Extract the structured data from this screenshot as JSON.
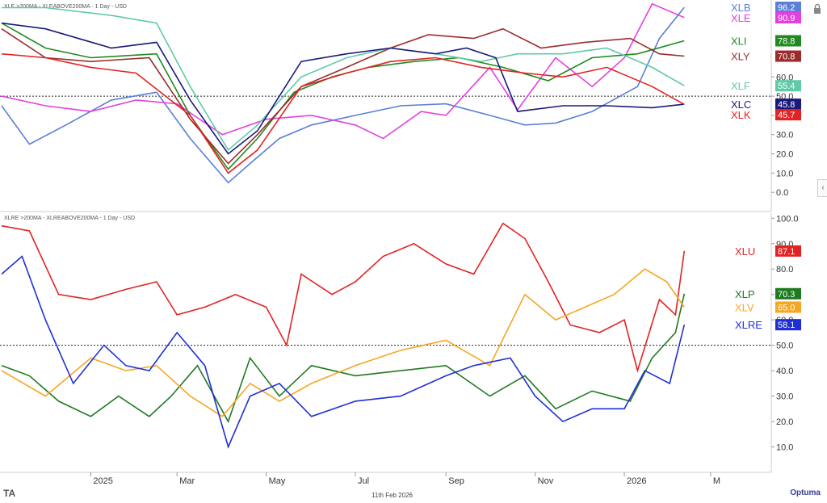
{
  "footer": {
    "date": "11th Feb 2026",
    "brand": "Optuma",
    "logo": "TA"
  },
  "icons": {
    "lock": "lock-icon",
    "collapse": "chevron-left-icon"
  },
  "chart_data": [
    {
      "type": "line",
      "title": "XLE >200MA - XLEABOVE200MA - 1 Day - USD",
      "x_start": "2024-11-01",
      "x_end": "2026-02-11",
      "ylim": [
        -10,
        100
      ],
      "yticks": [
        0.0,
        10.0,
        20.0,
        30.0,
        40.0,
        50.0,
        60.0
      ],
      "reference_line": 50,
      "series": [
        {
          "name": "XLB",
          "color": "#5b7fd6",
          "last": "96.2",
          "points": [
            [
              "2024-11-01",
              45
            ],
            [
              "2024-11-20",
              25
            ],
            [
              "2024-12-15",
              35
            ],
            [
              "2025-01-15",
              48
            ],
            [
              "2025-02-15",
              52
            ],
            [
              "2025-03-10",
              28
            ],
            [
              "2025-04-05",
              5
            ],
            [
              "2025-04-20",
              15
            ],
            [
              "2025-05-10",
              28
            ],
            [
              "2025-06-01",
              35
            ],
            [
              "2025-07-01",
              40
            ],
            [
              "2025-08-01",
              45
            ],
            [
              "2025-09-01",
              46
            ],
            [
              "2025-10-01",
              40
            ],
            [
              "2025-10-25",
              35
            ],
            [
              "2025-11-15",
              36
            ],
            [
              "2025-12-10",
              42
            ],
            [
              "2026-01-10",
              55
            ],
            [
              "2026-01-25",
              80
            ],
            [
              "2026-02-11",
              96.2
            ]
          ]
        },
        {
          "name": "XLE",
          "color": "#e43fe0",
          "last": "90.9",
          "points": [
            [
              "2024-11-01",
              50
            ],
            [
              "2024-12-01",
              45
            ],
            [
              "2025-01-01",
              42
            ],
            [
              "2025-02-01",
              48
            ],
            [
              "2025-03-01",
              46
            ],
            [
              "2025-04-01",
              30
            ],
            [
              "2025-05-01",
              38
            ],
            [
              "2025-06-01",
              40
            ],
            [
              "2025-07-01",
              35
            ],
            [
              "2025-07-20",
              28
            ],
            [
              "2025-08-15",
              42
            ],
            [
              "2025-09-01",
              40
            ],
            [
              "2025-10-01",
              65
            ],
            [
              "2025-10-20",
              43
            ],
            [
              "2025-11-15",
              70
            ],
            [
              "2025-12-10",
              55
            ],
            [
              "2026-01-01",
              70
            ],
            [
              "2026-01-20",
              98
            ],
            [
              "2026-02-11",
              90.9
            ]
          ]
        },
        {
          "name": "XLI",
          "color": "#1f8a1f",
          "last": "78.8",
          "points": [
            [
              "2024-11-01",
              88
            ],
            [
              "2024-12-01",
              75
            ],
            [
              "2025-01-01",
              70
            ],
            [
              "2025-02-15",
              72
            ],
            [
              "2025-03-10",
              40
            ],
            [
              "2025-04-05",
              12
            ],
            [
              "2025-04-25",
              28
            ],
            [
              "2025-05-20",
              52
            ],
            [
              "2025-06-15",
              60
            ],
            [
              "2025-07-10",
              65
            ],
            [
              "2025-08-10",
              68
            ],
            [
              "2025-09-10",
              70
            ],
            [
              "2025-10-10",
              65
            ],
            [
              "2025-11-10",
              58
            ],
            [
              "2025-12-10",
              70
            ],
            [
              "2026-01-10",
              72
            ],
            [
              "2026-02-11",
              78.8
            ]
          ]
        },
        {
          "name": "XLY",
          "color": "#9c2b2b",
          "last": "70.8",
          "points": [
            [
              "2024-11-01",
              85
            ],
            [
              "2024-12-01",
              70
            ],
            [
              "2025-01-01",
              68
            ],
            [
              "2025-02-10",
              70
            ],
            [
              "2025-03-10",
              38
            ],
            [
              "2025-04-05",
              15
            ],
            [
              "2025-04-25",
              30
            ],
            [
              "2025-05-25",
              55
            ],
            [
              "2025-06-25",
              65
            ],
            [
              "2025-07-25",
              75
            ],
            [
              "2025-08-20",
              82
            ],
            [
              "2025-09-20",
              80
            ],
            [
              "2025-10-10",
              85
            ],
            [
              "2025-11-05",
              75
            ],
            [
              "2025-12-05",
              78
            ],
            [
              "2026-01-05",
              80
            ],
            [
              "2026-01-25",
              72
            ],
            [
              "2026-02-11",
              70.8
            ]
          ]
        },
        {
          "name": "XLF",
          "color": "#5fc9a8",
          "last": "55.4",
          "points": [
            [
              "2024-11-01",
              96
            ],
            [
              "2024-12-01",
              96
            ],
            [
              "2025-01-15",
              92
            ],
            [
              "2025-02-15",
              88
            ],
            [
              "2025-03-10",
              55
            ],
            [
              "2025-04-05",
              22
            ],
            [
              "2025-04-25",
              35
            ],
            [
              "2025-05-25",
              60
            ],
            [
              "2025-06-25",
              70
            ],
            [
              "2025-07-25",
              75
            ],
            [
              "2025-08-25",
              72
            ],
            [
              "2025-09-25",
              68
            ],
            [
              "2025-10-20",
              72
            ],
            [
              "2025-11-20",
              72
            ],
            [
              "2025-12-20",
              75
            ],
            [
              "2026-01-20",
              65
            ],
            [
              "2026-02-11",
              55.4
            ]
          ]
        },
        {
          "name": "XLC",
          "color": "#1a1a7a",
          "last": "45.8",
          "points": [
            [
              "2024-11-01",
              88
            ],
            [
              "2024-12-01",
              85
            ],
            [
              "2025-01-15",
              75
            ],
            [
              "2025-02-15",
              78
            ],
            [
              "2025-03-10",
              48
            ],
            [
              "2025-04-05",
              20
            ],
            [
              "2025-04-25",
              32
            ],
            [
              "2025-05-25",
              68
            ],
            [
              "2025-06-25",
              72
            ],
            [
              "2025-07-25",
              75
            ],
            [
              "2025-08-25",
              72
            ],
            [
              "2025-09-15",
              75
            ],
            [
              "2025-10-05",
              70
            ],
            [
              "2025-10-20",
              42
            ],
            [
              "2025-11-20",
              45
            ],
            [
              "2025-12-20",
              45
            ],
            [
              "2026-01-20",
              44
            ],
            [
              "2026-02-11",
              45.8
            ]
          ]
        },
        {
          "name": "XLK",
          "color": "#e32222",
          "last": "45.7",
          "points": [
            [
              "2024-11-01",
              72
            ],
            [
              "2024-12-01",
              70
            ],
            [
              "2025-01-01",
              65
            ],
            [
              "2025-02-01",
              62
            ],
            [
              "2025-03-10",
              40
            ],
            [
              "2025-04-05",
              10
            ],
            [
              "2025-04-25",
              22
            ],
            [
              "2025-05-25",
              55
            ],
            [
              "2025-06-25",
              62
            ],
            [
              "2025-07-25",
              68
            ],
            [
              "2025-08-25",
              70
            ],
            [
              "2025-09-25",
              65
            ],
            [
              "2025-10-25",
              62
            ],
            [
              "2025-11-20",
              60
            ],
            [
              "2025-12-20",
              65
            ],
            [
              "2026-01-20",
              55
            ],
            [
              "2026-02-11",
              45.7
            ]
          ]
        }
      ]
    },
    {
      "type": "line",
      "title": "XLRE >200MA - XLREABOVE200MA - 1 Day - USD",
      "x_start": "2024-11-01",
      "x_end": "2026-02-11",
      "ylim": [
        0,
        102
      ],
      "yticks": [
        10.0,
        20.0,
        30.0,
        40.0,
        50.0,
        60.0,
        70.0,
        80.0,
        90.0,
        100.0
      ],
      "reference_line": 50,
      "x_tick_labels": [
        "2025",
        "Mar",
        "May",
        "Jul",
        "Sep",
        "Nov",
        "2026",
        "M"
      ],
      "series": [
        {
          "name": "XLU",
          "color": "#e32222",
          "last": "87.1",
          "points": [
            [
              "2024-11-01",
              97
            ],
            [
              "2024-11-20",
              95
            ],
            [
              "2024-12-10",
              70
            ],
            [
              "2025-01-01",
              68
            ],
            [
              "2025-01-25",
              72
            ],
            [
              "2025-02-15",
              75
            ],
            [
              "2025-03-01",
              62
            ],
            [
              "2025-03-20",
              65
            ],
            [
              "2025-04-10",
              70
            ],
            [
              "2025-05-01",
              65
            ],
            [
              "2025-05-15",
              50
            ],
            [
              "2025-05-25",
              78
            ],
            [
              "2025-06-15",
              70
            ],
            [
              "2025-07-01",
              75
            ],
            [
              "2025-07-20",
              85
            ],
            [
              "2025-08-10",
              90
            ],
            [
              "2025-09-01",
              82
            ],
            [
              "2025-09-20",
              78
            ],
            [
              "2025-10-10",
              98
            ],
            [
              "2025-10-25",
              92
            ],
            [
              "2025-11-10",
              75
            ],
            [
              "2025-11-25",
              58
            ],
            [
              "2025-12-15",
              55
            ],
            [
              "2026-01-01",
              60
            ],
            [
              "2026-01-10",
              40
            ],
            [
              "2026-01-25",
              68
            ],
            [
              "2026-02-05",
              62
            ],
            [
              "2026-02-11",
              87.1
            ]
          ]
        },
        {
          "name": "XLP",
          "color": "#1f7a1f",
          "last": "70.3",
          "points": [
            [
              "2024-11-01",
              42
            ],
            [
              "2024-11-20",
              38
            ],
            [
              "2024-12-10",
              28
            ],
            [
              "2025-01-01",
              22
            ],
            [
              "2025-01-20",
              30
            ],
            [
              "2025-02-10",
              22
            ],
            [
              "2025-02-25",
              30
            ],
            [
              "2025-03-15",
              42
            ],
            [
              "2025-04-05",
              20
            ],
            [
              "2025-04-20",
              45
            ],
            [
              "2025-05-10",
              30
            ],
            [
              "2025-06-01",
              42
            ],
            [
              "2025-07-01",
              38
            ],
            [
              "2025-08-01",
              40
            ],
            [
              "2025-09-01",
              42
            ],
            [
              "2025-10-01",
              30
            ],
            [
              "2025-10-25",
              38
            ],
            [
              "2025-11-15",
              25
            ],
            [
              "2025-12-10",
              32
            ],
            [
              "2026-01-05",
              28
            ],
            [
              "2026-01-20",
              45
            ],
            [
              "2026-02-05",
              55
            ],
            [
              "2026-02-11",
              70.3
            ]
          ]
        },
        {
          "name": "XLV",
          "color": "#f5a623",
          "last": "65.0",
          "points": [
            [
              "2024-11-01",
              40
            ],
            [
              "2024-12-01",
              30
            ],
            [
              "2025-01-01",
              45
            ],
            [
              "2025-01-25",
              40
            ],
            [
              "2025-02-15",
              42
            ],
            [
              "2025-03-10",
              30
            ],
            [
              "2025-04-01",
              22
            ],
            [
              "2025-04-20",
              35
            ],
            [
              "2025-05-10",
              28
            ],
            [
              "2025-06-01",
              35
            ],
            [
              "2025-07-01",
              42
            ],
            [
              "2025-08-01",
              48
            ],
            [
              "2025-09-01",
              52
            ],
            [
              "2025-10-01",
              42
            ],
            [
              "2025-10-25",
              70
            ],
            [
              "2025-11-15",
              60
            ],
            [
              "2025-12-05",
              65
            ],
            [
              "2025-12-25",
              70
            ],
            [
              "2026-01-15",
              80
            ],
            [
              "2026-01-30",
              75
            ],
            [
              "2026-02-11",
              65.0
            ]
          ]
        },
        {
          "name": "XLRE",
          "color": "#1f2fd6",
          "last": "58.1",
          "points": [
            [
              "2024-11-01",
              78
            ],
            [
              "2024-11-15",
              85
            ],
            [
              "2024-12-01",
              60
            ],
            [
              "2024-12-20",
              35
            ],
            [
              "2025-01-10",
              50
            ],
            [
              "2025-01-25",
              42
            ],
            [
              "2025-02-10",
              40
            ],
            [
              "2025-03-01",
              55
            ],
            [
              "2025-03-20",
              42
            ],
            [
              "2025-04-05",
              10
            ],
            [
              "2025-04-20",
              30
            ],
            [
              "2025-05-10",
              35
            ],
            [
              "2025-06-01",
              22
            ],
            [
              "2025-07-01",
              28
            ],
            [
              "2025-08-01",
              30
            ],
            [
              "2025-09-01",
              38
            ],
            [
              "2025-09-20",
              42
            ],
            [
              "2025-10-15",
              45
            ],
            [
              "2025-11-01",
              30
            ],
            [
              "2025-11-20",
              20
            ],
            [
              "2025-12-10",
              25
            ],
            [
              "2026-01-01",
              25
            ],
            [
              "2026-01-15",
              40
            ],
            [
              "2026-02-01",
              35
            ],
            [
              "2026-02-11",
              58.1
            ]
          ]
        }
      ]
    }
  ]
}
